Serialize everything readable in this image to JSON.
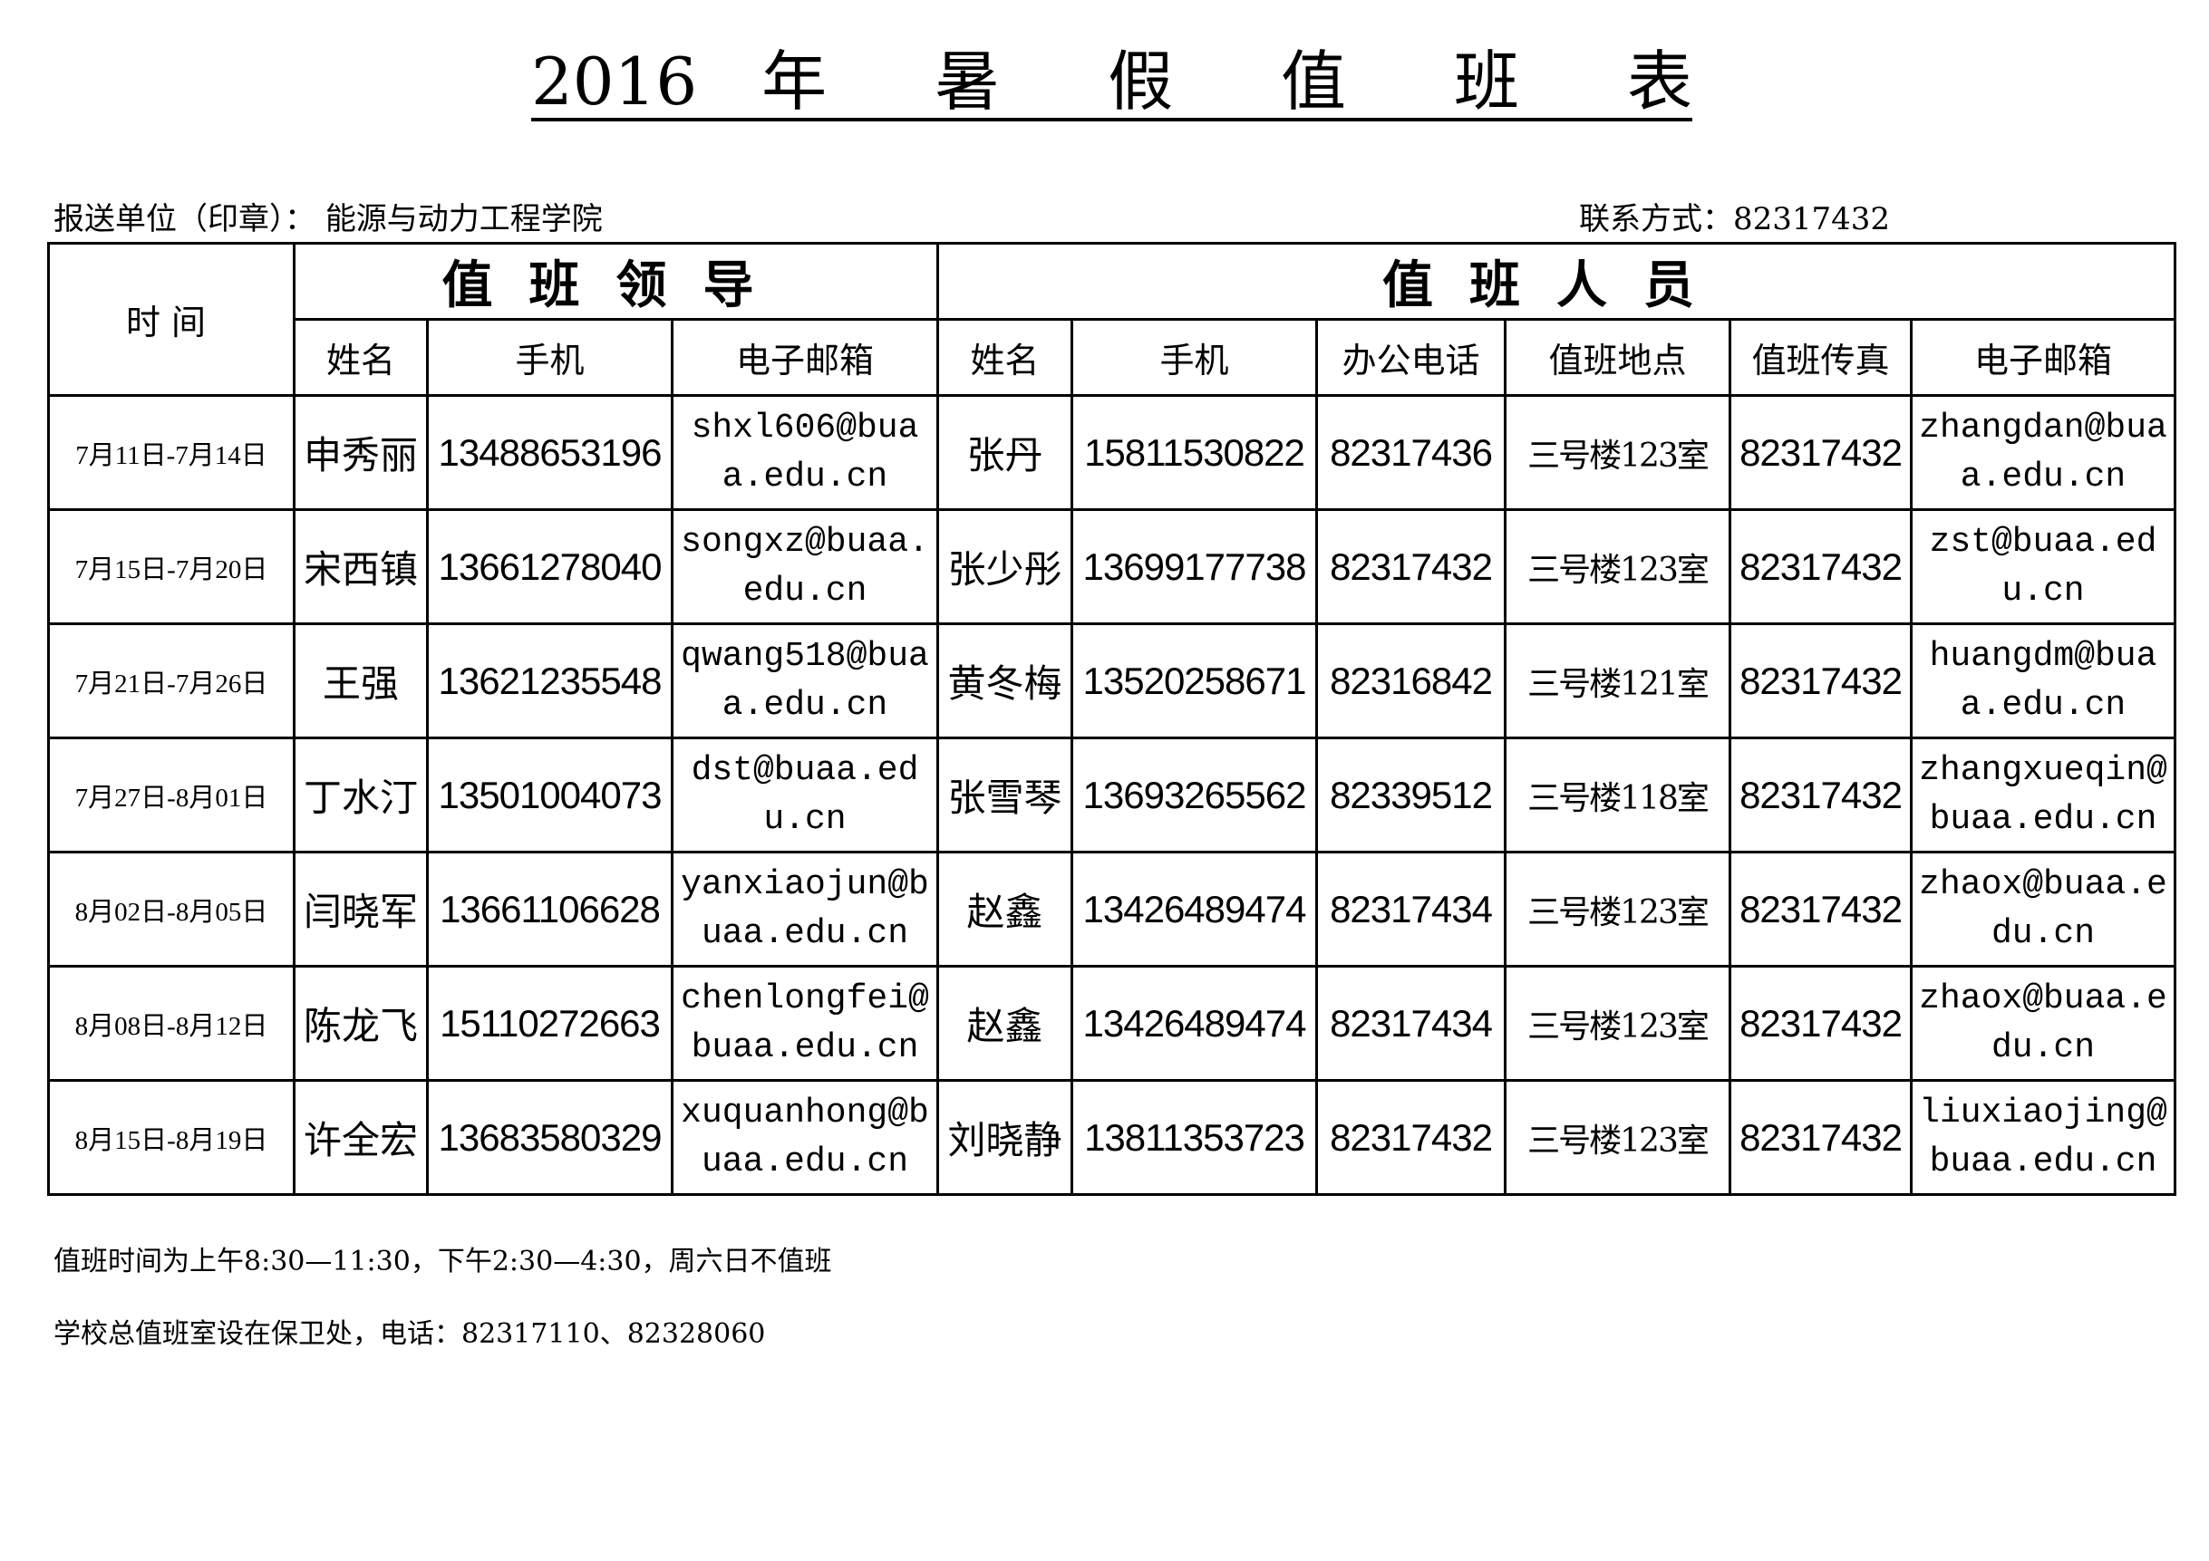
{
  "title": "2016 年 暑 假 值 班 表",
  "unit_label": "报送单位（印章）：",
  "unit_name": "能源与动力工程学院",
  "contact": "联系方式：82317432",
  "table": {
    "time_header": "时间",
    "leader_group": "值班领导",
    "staff_group": "值班人员",
    "columns": [
      "姓名",
      "手机",
      "电子邮箱",
      "姓名",
      "手机",
      "办公电话",
      "值班地点",
      "值班传真",
      "电子邮箱"
    ],
    "rows": [
      [
        "7月11日-7月14日",
        "申秀丽",
        "13488653196",
        "shxl606@buaa.edu.cn",
        "张丹",
        "15811530822",
        "82317436",
        "三号楼123室",
        "82317432",
        "zhangdan@buaa.edu.cn"
      ],
      [
        "7月15日-7月20日",
        "宋西镇",
        "13661278040",
        "songxz@buaa.edu.cn",
        "张少彤",
        "13699177738",
        "82317432",
        "三号楼123室",
        "82317432",
        "zst@buaa.edu.cn"
      ],
      [
        "7月21日-7月26日",
        "王强",
        "13621235548",
        "qwang518@buaa.edu.cn",
        "黄冬梅",
        "13520258671",
        "82316842",
        "三号楼121室",
        "82317432",
        "huangdm@buaa.edu.cn"
      ],
      [
        "7月27日-8月01日",
        "丁水汀",
        "13501004073",
        "dst@buaa.edu.cn",
        "张雪琴",
        "13693265562",
        "82339512",
        "三号楼118室",
        "82317432",
        "zhangxueqin@buaa.edu.cn"
      ],
      [
        "8月02日-8月05日",
        "闫晓军",
        "13661106628",
        "yanxiaojun@buaa.edu.cn",
        "赵鑫",
        "13426489474",
        "82317434",
        "三号楼123室",
        "82317432",
        "zhaox@buaa.edu.cn"
      ],
      [
        "8月08日-8月12日",
        "陈龙飞",
        "15110272663",
        "chenlongfei@buaa.edu.cn",
        "赵鑫",
        "13426489474",
        "82317434",
        "三号楼123室",
        "82317432",
        "zhaox@buaa.edu.cn"
      ],
      [
        "8月15日-8月19日",
        "许全宏",
        "13683580329",
        "xuquanhong@buaa.edu.cn",
        "刘晓静",
        "13811353723",
        "82317432",
        "三号楼123室",
        "82317432",
        "liuxiaojing@buaa.edu.cn"
      ]
    ]
  },
  "footer": {
    "hours": "值班时间为上午8:30—11:30，下午2:30—4:30，周六日不值班",
    "school_duty": "学校总值班室设在保卫处，电话：82317110、82328060"
  }
}
